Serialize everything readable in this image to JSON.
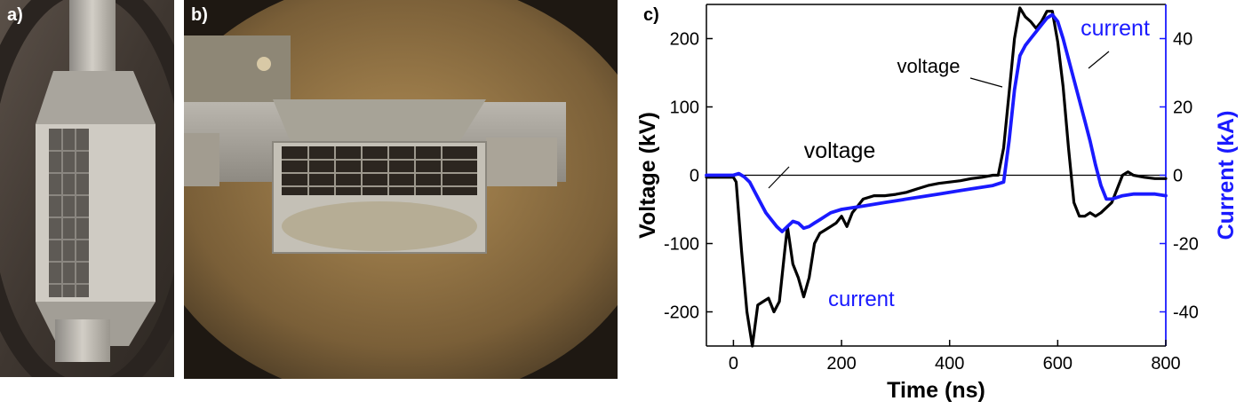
{
  "panels": {
    "a": {
      "label": "a)"
    },
    "b": {
      "label": "b)"
    },
    "c": {
      "label": "c)"
    }
  },
  "colors": {
    "voltage": "#000000",
    "current": "#1a1aff",
    "photo_metal": "#b8b3a8",
    "photo_dark": "#3b3530",
    "chamber_bronze": "#8a6a3e"
  },
  "chart_data": {
    "type": "line",
    "title": "",
    "xlabel": "Time (ns)",
    "ylabel_left": "Voltage (kV)",
    "ylabel_right": "Current (kA)",
    "xlim": [
      -50,
      800
    ],
    "ylim_left": [
      -250,
      250
    ],
    "ylim_right": [
      -50,
      50
    ],
    "xticks": [
      0,
      200,
      400,
      600,
      800
    ],
    "yticks_left": [
      -200,
      -100,
      0,
      100,
      200
    ],
    "yticks_right": [
      -40,
      -20,
      0,
      20,
      40
    ],
    "grid": false,
    "legend": "none",
    "annotations": [
      {
        "text": "voltage",
        "series": "voltage"
      },
      {
        "text": "current",
        "series": "current"
      },
      {
        "text": "voltage",
        "series": "voltage"
      },
      {
        "text": "current",
        "series": "current"
      }
    ],
    "series": [
      {
        "name": "voltage",
        "axis": "left",
        "x": [
          -50,
          0,
          5,
          15,
          25,
          35,
          45,
          55,
          65,
          75,
          85,
          95,
          100,
          110,
          120,
          130,
          140,
          150,
          160,
          170,
          180,
          190,
          200,
          210,
          220,
          230,
          240,
          260,
          280,
          300,
          320,
          340,
          360,
          380,
          400,
          420,
          440,
          460,
          480,
          490,
          500,
          510,
          520,
          530,
          540,
          550,
          560,
          570,
          580,
          590,
          600,
          610,
          620,
          630,
          640,
          650,
          660,
          670,
          680,
          700,
          720,
          730,
          740,
          760,
          780,
          800
        ],
        "y": [
          -3,
          -3,
          -10,
          -110,
          -200,
          -250,
          -190,
          -185,
          -180,
          -200,
          -185,
          -110,
          -75,
          -130,
          -150,
          -178,
          -150,
          -100,
          -85,
          -80,
          -75,
          -70,
          -60,
          -75,
          -55,
          -45,
          -35,
          -30,
          -30,
          -28,
          -25,
          -20,
          -15,
          -12,
          -10,
          -8,
          -5,
          -3,
          0,
          0,
          40,
          120,
          200,
          245,
          232,
          225,
          215,
          225,
          240,
          240,
          195,
          130,
          40,
          -40,
          -60,
          -60,
          -55,
          -60,
          -55,
          -40,
          0,
          5,
          0,
          -3,
          -5,
          -5
        ]
      },
      {
        "name": "current",
        "axis": "right",
        "x": [
          -50,
          0,
          10,
          20,
          30,
          40,
          50,
          60,
          70,
          80,
          90,
          100,
          110,
          120,
          130,
          140,
          150,
          160,
          170,
          180,
          200,
          220,
          240,
          260,
          280,
          300,
          320,
          340,
          360,
          380,
          400,
          420,
          440,
          460,
          480,
          500,
          510,
          520,
          530,
          540,
          550,
          560,
          570,
          580,
          590,
          600,
          610,
          620,
          630,
          640,
          650,
          660,
          670,
          680,
          690,
          700,
          720,
          740,
          760,
          780,
          800
        ],
        "y": [
          0,
          0,
          0.5,
          -0.5,
          -2,
          -5,
          -8,
          -11,
          -13,
          -15,
          -16.5,
          -15,
          -13.5,
          -14,
          -15.5,
          -15,
          -14,
          -13,
          -12,
          -11,
          -10,
          -9.5,
          -9,
          -8.5,
          -8,
          -7.5,
          -7,
          -6.5,
          -6,
          -5.5,
          -5,
          -4.5,
          -4,
          -3.5,
          -3,
          -2,
          10,
          25,
          35,
          38,
          40,
          42,
          44,
          46,
          47,
          45,
          40,
          34,
          28,
          22,
          16,
          10,
          3,
          -3,
          -7,
          -7,
          -6,
          -5.5,
          -5.5,
          -5.5,
          -6
        ]
      }
    ]
  }
}
